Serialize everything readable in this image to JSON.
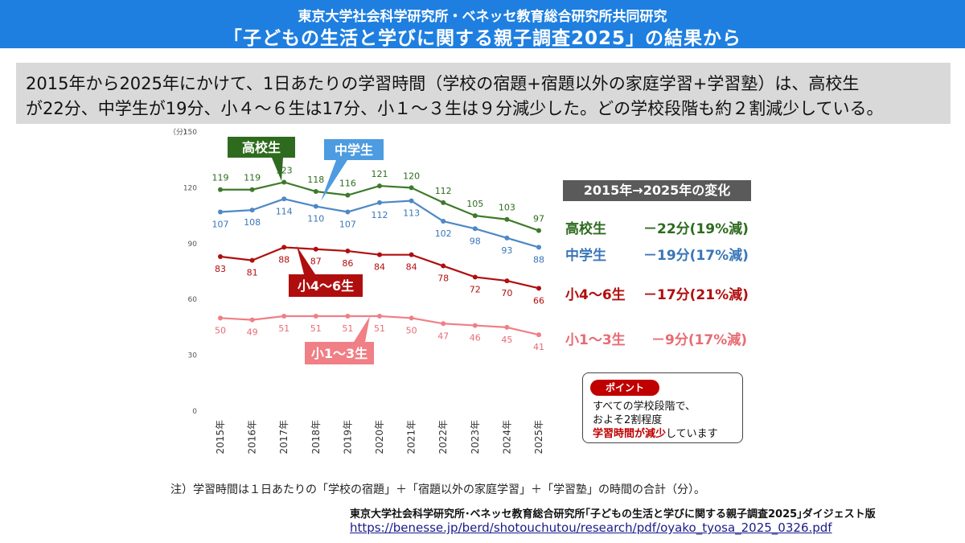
{
  "header": {
    "line1": "東京大学社会科学研究所・ベネッセ教育総合研究所共同研究",
    "line2": "「子どもの生活と学びに関する親子調査2025」の結果から"
  },
  "summary": {
    "line1": "2015年から2025年にかけて、1日あたりの学習時間（学校の宿題+宿題以外の家庭学習+学習塾）は、高校生",
    "line2": "が22分、中学生が19分、小４～６生は17分、小１～３生は９分減少した。どの学校段階も約２割減少している。"
  },
  "chart_data": {
    "type": "line",
    "yunit": "（分）",
    "ylim": [
      0,
      150
    ],
    "yticks": [
      0,
      30,
      60,
      90,
      120,
      150
    ],
    "categories": [
      "2015年",
      "2016年",
      "2017年",
      "2018年",
      "2019年",
      "2020年",
      "2021年",
      "2022年",
      "2023年",
      "2024年",
      "2025年"
    ],
    "series": [
      {
        "name": "高校生",
        "color": "#3d7a2a",
        "label_color": "#2e6b1f",
        "values": [
          119,
          119,
          123,
          118,
          116,
          121,
          120,
          112,
          105,
          103,
          97
        ]
      },
      {
        "name": "中学生",
        "color": "#4f88c6",
        "label_color": "#3a76b8",
        "values": [
          107,
          108,
          114,
          110,
          107,
          112,
          113,
          102,
          98,
          93,
          88
        ]
      },
      {
        "name": "小4～6生",
        "color": "#b00e0e",
        "label_color": "#b00e0e",
        "values": [
          83,
          81,
          88,
          87,
          86,
          84,
          84,
          78,
          72,
          70,
          66
        ]
      },
      {
        "name": "小1～3生",
        "color": "#f07f86",
        "label_color": "#e86b73",
        "values": [
          50,
          49,
          51,
          51,
          51,
          51,
          50,
          47,
          46,
          45,
          41
        ]
      }
    ]
  },
  "change": {
    "title": "2015年→2025年の変化",
    "rows": [
      {
        "name": "高校生",
        "value": "－22分(19%減)",
        "color": "#2e6b1f"
      },
      {
        "name": "中学生",
        "value": "－19分(17%減)",
        "color": "#3a76b8"
      },
      {
        "name": "小4～6生",
        "value": "－17分(21%減)",
        "color": "#b00e0e"
      },
      {
        "name": "小1～3生",
        "value": "－9分(17%減)",
        "color": "#e86b73"
      }
    ]
  },
  "point": {
    "badge": "ポイント",
    "line1": "すべての学校段階で、",
    "line2": "およそ2割程度",
    "line3_highlight": "学習時間が減少",
    "line3_rest": "しています"
  },
  "note": "注）学習時間は１日あたりの「学校の宿題」＋「宿題以外の家庭学習」＋「学習塾」の時間の合計（分）。",
  "source": "東京大学社会科学研究所･ベネッセ教育総合研究所｢子どもの生活と学びに関する親子調査2025｣ダイジェスト版",
  "url": "https://benesse.jp/berd/shotouchutou/research/pdf/oyako_tyosa_2025_0326.pdf"
}
